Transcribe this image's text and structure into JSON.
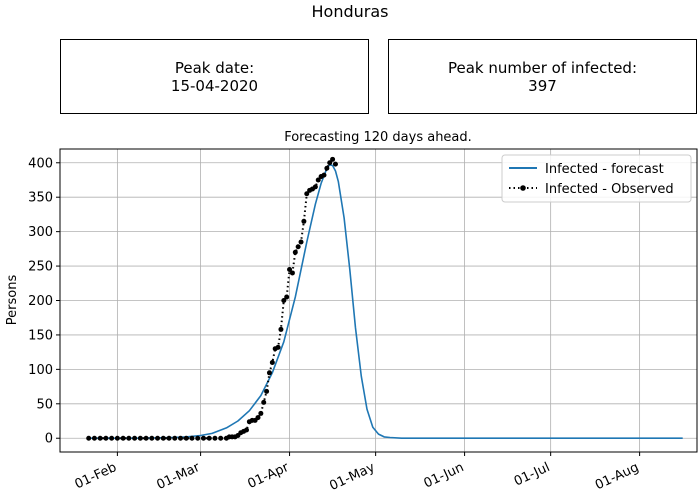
{
  "title": "Honduras",
  "boxes": {
    "peak_date": {
      "label": "Peak date:",
      "value": "15-04-2020"
    },
    "peak_number": {
      "label": "Peak number of infected:",
      "value": "397"
    }
  },
  "chart_data": {
    "type": "line",
    "title": "Forecasting 120 days ahead.",
    "xlabel": "",
    "ylabel": "Persons",
    "x_tick_labels": [
      "01-Feb",
      "01-Mar",
      "01-Apr",
      "01-May",
      "01-Jun",
      "01-Jul",
      "01-Aug"
    ],
    "x_tick_dates": [
      "2020-02-01",
      "2020-03-01",
      "2020-04-01",
      "2020-05-01",
      "2020-06-01",
      "2020-07-01",
      "2020-08-01"
    ],
    "xlim": [
      "2020-01-12",
      "2020-08-21"
    ],
    "y_ticks": [
      0,
      50,
      100,
      150,
      200,
      250,
      300,
      350,
      400
    ],
    "ylim": [
      -20,
      420
    ],
    "grid": true,
    "legend_position": "top-right",
    "series": [
      {
        "name": "Infected - forecast",
        "color": "#1f77b4",
        "style": "solid",
        "x": [
          "2020-01-22",
          "2020-02-10",
          "2020-02-20",
          "2020-02-25",
          "2020-03-01",
          "2020-03-05",
          "2020-03-10",
          "2020-03-14",
          "2020-03-18",
          "2020-03-22",
          "2020-03-26",
          "2020-03-30",
          "2020-04-03",
          "2020-04-07",
          "2020-04-10",
          "2020-04-12",
          "2020-04-14",
          "2020-04-15",
          "2020-04-16",
          "2020-04-17",
          "2020-04-18",
          "2020-04-20",
          "2020-04-22",
          "2020-04-24",
          "2020-04-26",
          "2020-04-28",
          "2020-04-30",
          "2020-05-02",
          "2020-05-04",
          "2020-05-06",
          "2020-05-10",
          "2020-06-01",
          "2020-07-01",
          "2020-08-16"
        ],
        "values": [
          0,
          0,
          1,
          2,
          4,
          7,
          15,
          25,
          40,
          62,
          95,
          140,
          205,
          285,
          340,
          370,
          392,
          397,
          396,
          388,
          373,
          320,
          245,
          160,
          90,
          42,
          16,
          6,
          2,
          1,
          0,
          0,
          0,
          0
        ]
      },
      {
        "name": "Infected - Observed",
        "color": "#000000",
        "style": "dotted",
        "marker": "circle",
        "x": [
          "2020-01-22",
          "2020-01-24",
          "2020-01-26",
          "2020-01-28",
          "2020-01-30",
          "2020-02-01",
          "2020-02-03",
          "2020-02-05",
          "2020-02-07",
          "2020-02-09",
          "2020-02-11",
          "2020-02-13",
          "2020-02-15",
          "2020-02-17",
          "2020-02-19",
          "2020-02-21",
          "2020-02-23",
          "2020-02-25",
          "2020-02-27",
          "2020-02-29",
          "2020-03-02",
          "2020-03-04",
          "2020-03-06",
          "2020-03-08",
          "2020-03-10",
          "2020-03-11",
          "2020-03-12",
          "2020-03-13",
          "2020-03-14",
          "2020-03-15",
          "2020-03-16",
          "2020-03-17",
          "2020-03-18",
          "2020-03-19",
          "2020-03-20",
          "2020-03-21",
          "2020-03-22",
          "2020-03-23",
          "2020-03-24",
          "2020-03-25",
          "2020-03-26",
          "2020-03-27",
          "2020-03-28",
          "2020-03-29",
          "2020-03-30",
          "2020-03-31",
          "2020-04-01",
          "2020-04-02",
          "2020-04-03",
          "2020-04-04",
          "2020-04-05",
          "2020-04-06",
          "2020-04-07",
          "2020-04-08",
          "2020-04-09",
          "2020-04-10",
          "2020-04-11",
          "2020-04-12",
          "2020-04-13",
          "2020-04-14",
          "2020-04-15",
          "2020-04-16",
          "2020-04-17"
        ],
        "values": [
          0,
          0,
          0,
          0,
          0,
          0,
          0,
          0,
          0,
          0,
          0,
          0,
          0,
          0,
          0,
          0,
          0,
          0,
          0,
          0,
          0,
          0,
          0,
          0,
          0,
          2,
          2,
          2,
          4,
          8,
          10,
          12,
          24,
          26,
          26,
          30,
          36,
          52,
          68,
          95,
          110,
          130,
          132,
          158,
          200,
          205,
          245,
          240,
          270,
          278,
          285,
          315,
          355,
          360,
          362,
          365,
          375,
          380,
          382,
          392,
          400,
          405,
          398
        ]
      }
    ]
  }
}
